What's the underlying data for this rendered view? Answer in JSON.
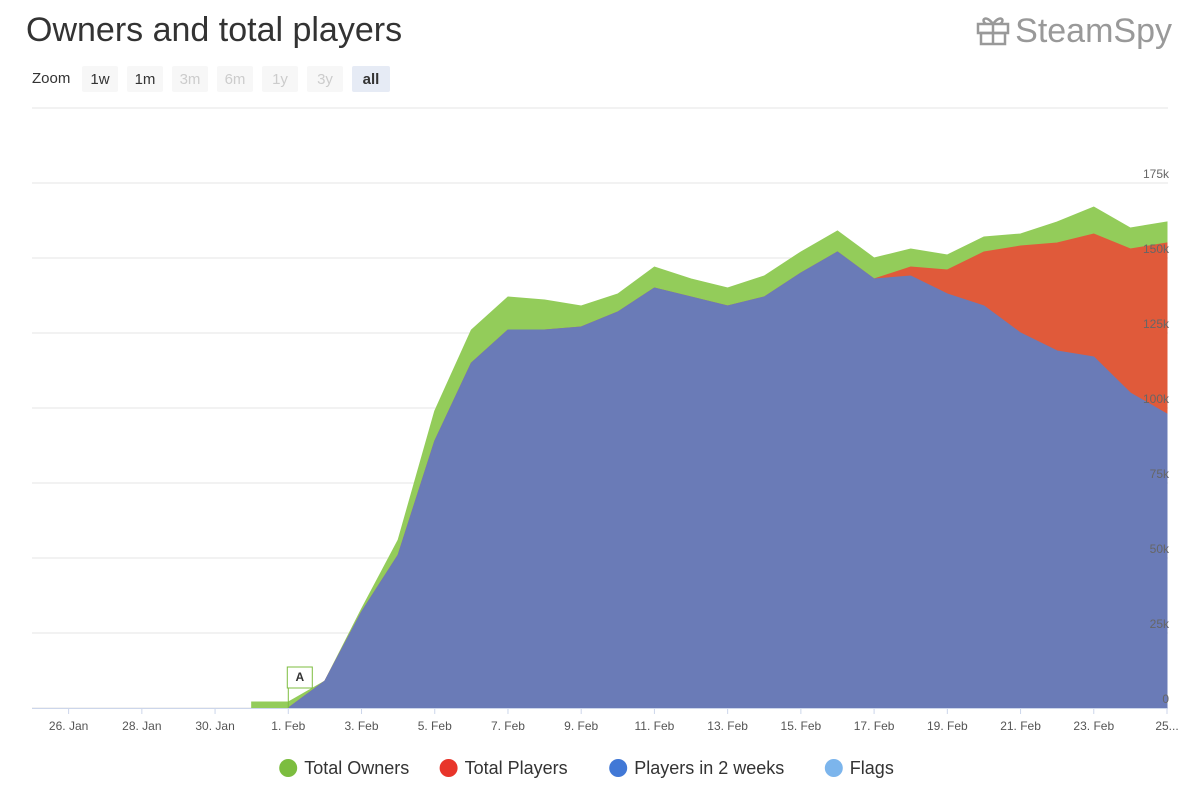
{
  "title": "Owners and total players",
  "logo": "SteamSpy",
  "range_selector": {
    "label": "Zoom",
    "buttons": [
      {
        "text": "1w",
        "state": "normal"
      },
      {
        "text": "1m",
        "state": "normal"
      },
      {
        "text": "3m",
        "state": "disabled"
      },
      {
        "text": "6m",
        "state": "disabled"
      },
      {
        "text": "1y",
        "state": "disabled"
      },
      {
        "text": "3y",
        "state": "disabled"
      },
      {
        "text": "all",
        "state": "selected"
      }
    ]
  },
  "chart_data": {
    "type": "area",
    "categories": [
      null,
      "26. Jan",
      null,
      "28. Jan",
      null,
      "30. Jan",
      null,
      "1. Feb",
      null,
      "3. Feb",
      null,
      "5. Feb",
      null,
      "7. Feb",
      null,
      "9. Feb",
      null,
      "11. Feb",
      null,
      "13. Feb",
      null,
      "15. Feb",
      null,
      "17. Feb",
      null,
      "19. Feb",
      null,
      "21. Feb",
      null,
      "23. Feb",
      null,
      "25..."
    ],
    "series": [
      {
        "name": "Total Owners",
        "color": "#93cc5a",
        "legend_color": "#7cbd3f",
        "values": [
          null,
          null,
          null,
          null,
          null,
          null,
          2000,
          2000,
          9000,
          33000,
          56000,
          99000,
          126000,
          137000,
          136000,
          134000,
          138000,
          147000,
          143000,
          140000,
          144000,
          152000,
          159000,
          150000,
          153000,
          151000,
          157000,
          158000,
          162000,
          167000,
          160000,
          162000
        ]
      },
      {
        "name": "Total Players",
        "color": "#e05a3a",
        "legend_color": "#e8352a",
        "values": [
          null,
          null,
          null,
          null,
          null,
          null,
          null,
          0,
          9000,
          32000,
          51000,
          89000,
          115000,
          126000,
          126000,
          127000,
          132000,
          140000,
          137000,
          134000,
          137000,
          145000,
          152000,
          143000,
          147000,
          146000,
          152000,
          154000,
          155000,
          158000,
          153000,
          155000
        ]
      },
      {
        "name": "Players in 2 weeks",
        "color": "#6a7bb7",
        "legend_color": "#4178d6",
        "values": [
          null,
          null,
          null,
          null,
          null,
          null,
          null,
          0,
          9000,
          32000,
          51000,
          89000,
          115000,
          126000,
          126000,
          127000,
          132000,
          140000,
          137000,
          134000,
          137000,
          145000,
          152000,
          143000,
          144000,
          138000,
          134000,
          125000,
          119000,
          117000,
          105000,
          98000
        ]
      }
    ],
    "flags": {
      "name": "Flags",
      "color": "#7cb5ec",
      "items": [
        {
          "x": 7,
          "text": "A"
        }
      ]
    },
    "ylim": [
      0,
      200000
    ],
    "yticks": [
      0,
      {
        "value": 25000,
        "label": "25k"
      },
      {
        "value": 50000,
        "label": "50k"
      },
      {
        "value": 75000,
        "label": "75k"
      },
      {
        "value": 100000,
        "label": "100k"
      },
      {
        "value": 125000,
        "label": "125k"
      },
      {
        "value": 150000,
        "label": "150k"
      },
      {
        "value": 175000,
        "label": "175k"
      }
    ],
    "grid": true
  }
}
